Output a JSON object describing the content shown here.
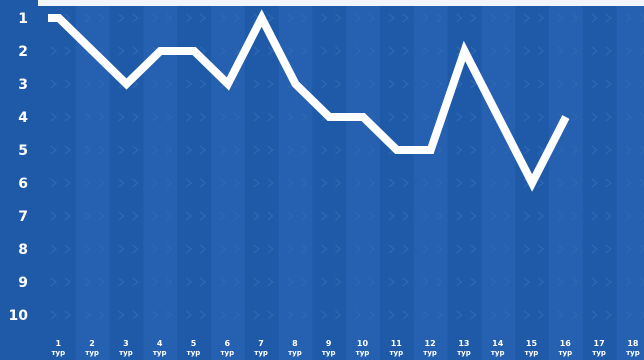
{
  "chart_data": {
    "type": "line",
    "title": "",
    "xlabel": "",
    "ylabel": "",
    "x": [
      "1",
      "2",
      "3",
      "4",
      "5",
      "6",
      "7",
      "8",
      "9",
      "10",
      "11",
      "12",
      "13",
      "14",
      "15",
      "16",
      "17",
      "18"
    ],
    "x_suffix": "тур",
    "series": [
      {
        "values": [
          1,
          2,
          3,
          2,
          2,
          3,
          1,
          3,
          4,
          4,
          5,
          5,
          2,
          4,
          6,
          4,
          null,
          null
        ]
      }
    ],
    "yticks": [
      "1",
      "2",
      "3",
      "4",
      "5",
      "6",
      "7",
      "8",
      "9",
      "10"
    ],
    "ylim": [
      1,
      10
    ],
    "y_inverted": true,
    "grid": false,
    "legend": "none"
  },
  "colors": {
    "panel_bg": "#1e5aa8",
    "stripe": "#2561b0",
    "line": "#ffffff",
    "text": "#ffffff",
    "outer_bg": "#f2f5f9"
  }
}
